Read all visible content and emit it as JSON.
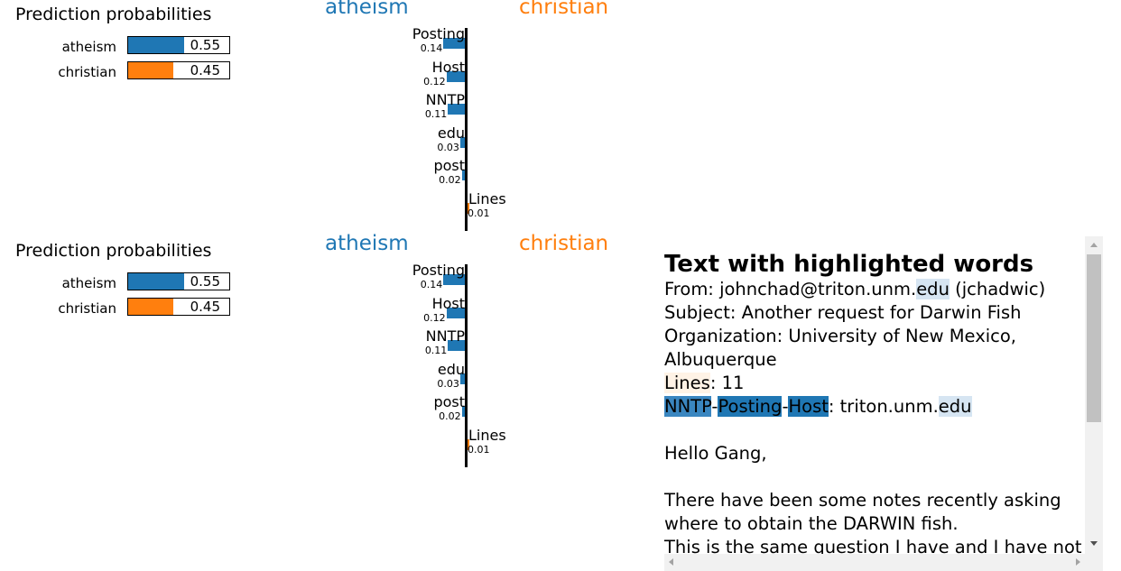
{
  "panels": [
    {
      "probs_title": "Prediction probabilities",
      "probs": [
        {
          "label": "atheism",
          "value": 0.55,
          "value_text": "0.55",
          "color": "#1f77b4"
        },
        {
          "label": "christian",
          "value": 0.45,
          "value_text": "0.45",
          "color": "#ff7f0e"
        }
      ],
      "neg_class": "atheism",
      "pos_class": "christian",
      "features": [
        {
          "label": "Posting",
          "value": 0.14,
          "value_text": "0.14",
          "side": "neg"
        },
        {
          "label": "Host",
          "value": 0.12,
          "value_text": "0.12",
          "side": "neg"
        },
        {
          "label": "NNTP",
          "value": 0.11,
          "value_text": "0.11",
          "side": "neg"
        },
        {
          "label": "edu",
          "value": 0.03,
          "value_text": "0.03",
          "side": "neg"
        },
        {
          "label": "post",
          "value": 0.02,
          "value_text": "0.02",
          "side": "neg"
        },
        {
          "label": "Lines",
          "value": 0.01,
          "value_text": "0.01",
          "side": "pos"
        }
      ]
    },
    {
      "probs_title": "Prediction probabilities",
      "probs": [
        {
          "label": "atheism",
          "value": 0.55,
          "value_text": "0.55",
          "color": "#1f77b4"
        },
        {
          "label": "christian",
          "value": 0.45,
          "value_text": "0.45",
          "color": "#ff7f0e"
        }
      ],
      "neg_class": "atheism",
      "pos_class": "christian",
      "features": [
        {
          "label": "Posting",
          "value": 0.14,
          "value_text": "0.14",
          "side": "neg"
        },
        {
          "label": "Host",
          "value": 0.12,
          "value_text": "0.12",
          "side": "neg"
        },
        {
          "label": "NNTP",
          "value": 0.11,
          "value_text": "0.11",
          "side": "neg"
        },
        {
          "label": "edu",
          "value": 0.03,
          "value_text": "0.03",
          "side": "neg"
        },
        {
          "label": "post",
          "value": 0.02,
          "value_text": "0.02",
          "side": "neg"
        },
        {
          "label": "Lines",
          "value": 0.01,
          "value_text": "0.01",
          "side": "pos"
        }
      ]
    }
  ],
  "colors": {
    "neg": "#1f77b4",
    "pos": "#ff7f0e"
  },
  "text_panel": {
    "title": "Text with highlighted words",
    "from_prefix": "From: johnchad@triton.unm.",
    "from_edu": "edu",
    "from_suffix": " (jchadwic)",
    "subject": "Subject: Another request for Darwin Fish",
    "org1": "Organization: University of New Mexico,",
    "org2": "Albuquerque",
    "lines_word": "Lines",
    "lines_rest": ": 11",
    "nntp": "NNTP",
    "dash1": "-",
    "posting": "Posting",
    "dash2": "-",
    "host": "Host",
    "host_rest": ": triton.unm.",
    "host_edu": "edu",
    "greeting": "Hello Gang,",
    "body1": "There have been some notes recently asking",
    "body2": "where to obtain the DARWIN fish.",
    "body3": "This is the same question I have and I have not"
  }
}
